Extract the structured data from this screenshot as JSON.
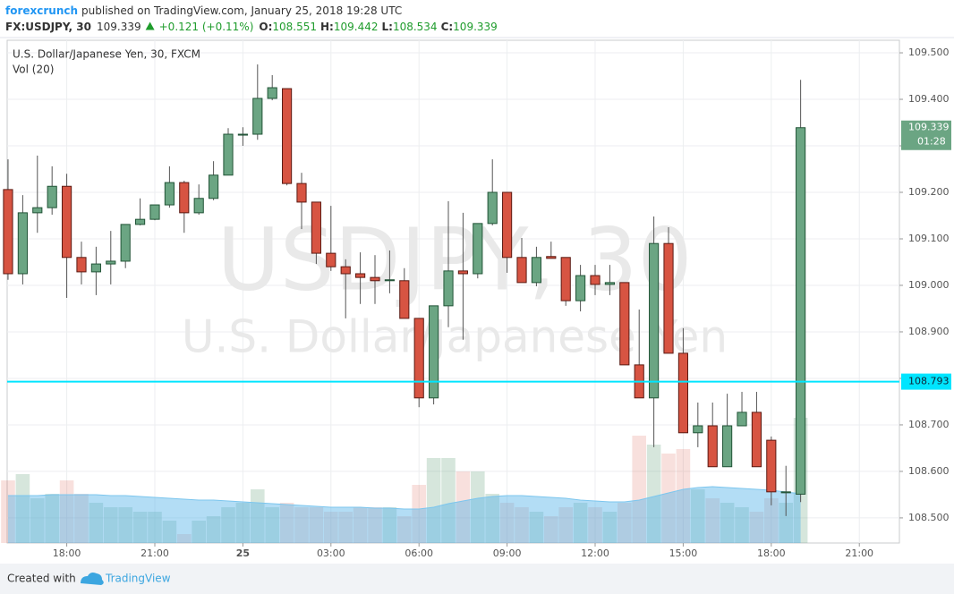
{
  "header": {
    "author": "forexcrunch",
    "published": "published on TradingView.com, January 25, 2018 19:28 UTC",
    "symbol": "FX:USDJPY, 30",
    "last": "109.339",
    "change": "+0.121 (+0.11%)",
    "ohlc": [
      {
        "label": "O:",
        "value": "108.551"
      },
      {
        "label": "H:",
        "value": "109.442"
      },
      {
        "label": "L:",
        "value": "108.534"
      },
      {
        "label": "C:",
        "value": "109.339"
      }
    ]
  },
  "footer": {
    "created": "Created with",
    "brand": "TradingView"
  },
  "chart_data": {
    "type": "candlestick",
    "title": "U.S. Dollar/Japanese Yen, 30, FXCM",
    "indicator": "Vol (20)",
    "watermark": [
      "USDJPY, 30",
      "U.S. Dollar/Japanese Yen"
    ],
    "up_color": "#6ba583",
    "up_border": "#225437",
    "down_color": "#d75442",
    "down_border": "#5b1a13",
    "grid": true,
    "x": [
      0,
      1,
      2,
      3,
      4,
      5,
      6,
      7,
      8,
      9,
      10,
      11,
      12,
      13,
      14,
      15,
      16,
      17,
      18,
      19,
      20,
      21,
      22,
      23,
      24,
      25,
      26,
      27,
      28,
      29,
      30,
      31,
      32,
      33,
      34,
      35,
      36,
      37,
      38,
      39,
      40,
      41,
      42,
      43,
      44,
      45,
      46,
      47,
      48,
      49,
      50,
      51,
      52,
      53,
      54
    ],
    "open": [
      109.206,
      109.025,
      109.156,
      109.167,
      109.213,
      109.06,
      109.029,
      109.046,
      109.052,
      109.131,
      109.142,
      109.173,
      109.221,
      109.156,
      109.187,
      109.237,
      109.323,
      109.325,
      109.402,
      109.423,
      109.219,
      109.179,
      109.069,
      109.04,
      109.025,
      109.017,
      109.01,
      109.01,
      108.929,
      108.758,
      108.956,
      109.031,
      109.025,
      109.133,
      109.2,
      109.06,
      109.006,
      109.062,
      109.06,
      108.967,
      109.021,
      109.002,
      109.006,
      108.829,
      108.758,
      109.09,
      108.854,
      108.683,
      108.698,
      108.61,
      108.698,
      108.727,
      108.667,
      108.554,
      108.551
    ],
    "high": [
      109.271,
      109.194,
      109.279,
      109.256,
      109.24,
      109.094,
      109.083,
      109.117,
      109.131,
      109.187,
      109.173,
      109.256,
      109.225,
      109.217,
      109.267,
      109.338,
      109.34,
      109.475,
      109.452,
      109.423,
      109.242,
      109.179,
      109.171,
      109.056,
      109.071,
      109.065,
      109.075,
      109.037,
      108.929,
      108.956,
      109.181,
      109.156,
      109.133,
      109.271,
      109.2,
      109.102,
      109.083,
      109.094,
      109.06,
      109.044,
      109.044,
      109.044,
      109.006,
      108.948,
      109.148,
      109.125,
      108.908,
      108.748,
      108.748,
      108.767,
      108.771,
      108.771,
      108.675,
      108.612,
      109.442
    ],
    "low": [
      109.012,
      109.002,
      109.113,
      109.152,
      108.973,
      109.002,
      108.979,
      109.002,
      109.037,
      109.129,
      109.14,
      109.167,
      109.113,
      109.152,
      109.183,
      109.237,
      109.3,
      109.313,
      109.398,
      109.215,
      109.121,
      109.046,
      109.031,
      108.929,
      108.96,
      108.96,
      108.983,
      108.929,
      108.738,
      108.744,
      108.91,
      108.883,
      109.015,
      109.129,
      109.027,
      109.006,
      108.998,
      109.058,
      108.956,
      108.944,
      108.979,
      108.979,
      108.829,
      108.758,
      108.652,
      108.854,
      108.683,
      108.652,
      108.61,
      108.61,
      108.698,
      108.61,
      108.527,
      108.504,
      108.534
    ],
    "close": [
      109.025,
      109.156,
      109.167,
      109.213,
      109.06,
      109.029,
      109.046,
      109.052,
      109.131,
      109.142,
      109.173,
      109.221,
      109.156,
      109.187,
      109.237,
      109.325,
      109.325,
      109.402,
      109.425,
      109.219,
      109.179,
      109.069,
      109.04,
      109.025,
      109.017,
      109.01,
      109.012,
      108.929,
      108.758,
      108.956,
      109.031,
      109.025,
      109.133,
      109.2,
      109.06,
      109.006,
      109.06,
      109.058,
      108.967,
      109.021,
      109.002,
      109.006,
      108.829,
      108.758,
      109.09,
      108.854,
      108.683,
      108.698,
      108.61,
      108.698,
      108.727,
      108.61,
      108.556,
      108.556,
      109.339
    ],
    "volume": [
      70,
      77,
      50,
      55,
      70,
      55,
      45,
      40,
      40,
      35,
      35,
      25,
      10,
      25,
      30,
      40,
      45,
      60,
      40,
      45,
      40,
      40,
      35,
      35,
      40,
      40,
      40,
      30,
      65,
      95,
      95,
      80,
      80,
      55,
      45,
      40,
      35,
      30,
      40,
      45,
      40,
      35,
      45,
      120,
      110,
      100,
      105,
      60,
      50,
      45,
      40,
      35,
      50,
      45,
      140
    ],
    "volume_ma": [
      53,
      53,
      53,
      54,
      54,
      54,
      54,
      53,
      53,
      52,
      51,
      50,
      49,
      48,
      48,
      47,
      46,
      45,
      44,
      43,
      42,
      41,
      40,
      40,
      40,
      39,
      39,
      38,
      38,
      40,
      44,
      47,
      50,
      52,
      53,
      53,
      52,
      51,
      50,
      48,
      47,
      46,
      46,
      48,
      52,
      56,
      60,
      62,
      63,
      62,
      61,
      60,
      59,
      57,
      55
    ],
    "volume_ylim": [
      0,
      562
    ],
    "xlim": [
      -0.06,
      60.73
    ],
    "xticks": [
      {
        "value": 4,
        "label": "18:00"
      },
      {
        "value": 10,
        "label": "21:00"
      },
      {
        "value": 16,
        "label": "25"
      },
      {
        "value": 22,
        "label": "03:00"
      },
      {
        "value": 28,
        "label": "06:00"
      },
      {
        "value": 34,
        "label": "09:00"
      },
      {
        "value": 40,
        "label": "12:00"
      },
      {
        "value": 46,
        "label": "15:00"
      },
      {
        "value": 52,
        "label": "18:00"
      },
      {
        "value": 58,
        "label": "21:00"
      }
    ],
    "ylim": [
      108.446,
      109.527
    ],
    "yticks": [
      {
        "value": 108.5,
        "label": "108.500"
      },
      {
        "value": 108.6,
        "label": "108.600"
      },
      {
        "value": 108.7,
        "label": "108.700"
      },
      {
        "value": 108.8,
        "label": "108.800"
      },
      {
        "value": 108.9,
        "label": "108.900"
      },
      {
        "value": 109.0,
        "label": "109.000"
      },
      {
        "value": 109.1,
        "label": "109.100"
      },
      {
        "value": 109.2,
        "label": "109.200"
      },
      {
        "value": 109.3,
        "label": "109.300"
      },
      {
        "value": 109.4,
        "label": "109.400"
      },
      {
        "value": 109.5,
        "label": "109.500"
      }
    ],
    "price_line": {
      "value": 108.793,
      "color": "#00e5ff"
    },
    "last_price": 109.339,
    "countdown": "01:28"
  }
}
